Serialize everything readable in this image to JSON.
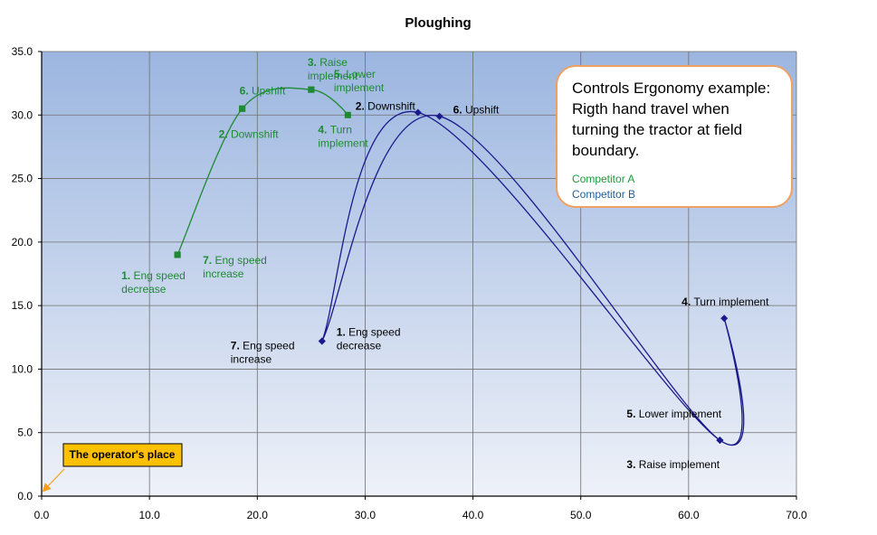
{
  "chart_data": {
    "type": "line",
    "title": "Ploughing",
    "xlabel": "",
    "ylabel": "",
    "xlim": [
      0,
      70
    ],
    "ylim": [
      0,
      35
    ],
    "x_ticks": [
      "0.0",
      "10.0",
      "20.0",
      "30.0",
      "40.0",
      "50.0",
      "60.0",
      "70.0"
    ],
    "y_ticks": [
      "0.0",
      "5.0",
      "10.0",
      "15.0",
      "20.0",
      "25.0",
      "30.0",
      "35.0"
    ],
    "grid": true,
    "series": [
      {
        "name": "Competitor A",
        "color": "#1e8a32",
        "smooth": true,
        "points": [
          {
            "step": "1.",
            "label": "Eng speed decrease",
            "x": 12.6,
            "y": 19.0
          },
          {
            "step": "2.",
            "label": "Downshift",
            "x": 18.6,
            "y": 30.5
          },
          {
            "step": "3.",
            "label": "Raise implement",
            "x": 25.0,
            "y": 32.0
          },
          {
            "step": "4.",
            "label": "Turn implement",
            "x": 28.4,
            "y": 30.0
          },
          {
            "step": "5.",
            "label": "Lower implement",
            "x": 25.0,
            "y": 32.0
          },
          {
            "step": "6.",
            "label": "Upshift",
            "x": 18.6,
            "y": 30.5
          },
          {
            "step": "7.",
            "label": "Eng speed increase",
            "x": 12.6,
            "y": 19.0
          }
        ]
      },
      {
        "name": "Competitor B",
        "color": "#1a1a8c",
        "smooth": true,
        "points": [
          {
            "step": "1.",
            "label": "Eng speed decrease",
            "x": 26.0,
            "y": 12.2
          },
          {
            "step": "2.",
            "label": "Downshift",
            "x": 34.9,
            "y": 30.2
          },
          {
            "step": "3.",
            "label": "Raise implement",
            "x": 62.9,
            "y": 4.4
          },
          {
            "step": "4.",
            "label": "Turn implement",
            "x": 63.3,
            "y": 14.0
          },
          {
            "step": "5.",
            "label": "Lower implement",
            "x": 62.9,
            "y": 4.4
          },
          {
            "step": "6.",
            "label": "Upshift",
            "x": 36.9,
            "y": 29.9
          },
          {
            "step": "7.",
            "label": "Eng speed increase",
            "x": 26.0,
            "y": 12.2
          }
        ]
      }
    ],
    "annotations": [
      {
        "series": 0,
        "step": "1.",
        "lines": [
          "Eng speed",
          "decrease"
        ]
      },
      {
        "series": 0,
        "step": "2.",
        "lines": [
          "Downshift"
        ]
      },
      {
        "series": 0,
        "step": "3.",
        "lines": [
          "Raise",
          "implement"
        ]
      },
      {
        "series": 0,
        "step": "4.",
        "lines": [
          "Turn",
          "implement"
        ]
      },
      {
        "series": 0,
        "step": "5.",
        "lines": [
          "Lower",
          "implement"
        ]
      },
      {
        "series": 0,
        "step": "6.",
        "lines": [
          "Upshift"
        ]
      },
      {
        "series": 0,
        "step": "7.",
        "lines": [
          "Eng speed",
          "increase"
        ]
      },
      {
        "series": 1,
        "step": "1.",
        "lines": [
          "Eng speed",
          "decrease"
        ]
      },
      {
        "series": 1,
        "step": "2.",
        "lines": [
          "Downshift"
        ]
      },
      {
        "series": 1,
        "step": "3.",
        "lines": [
          "Raise  implement"
        ]
      },
      {
        "series": 1,
        "step": "4.",
        "lines": [
          "Turn  implement"
        ]
      },
      {
        "series": 1,
        "step": "5.",
        "lines": [
          "Lower implement"
        ]
      },
      {
        "series": 1,
        "step": "6.",
        "lines": [
          "Upshift"
        ]
      },
      {
        "series": 1,
        "step": "7.",
        "lines": [
          "Eng speed",
          "increase"
        ]
      }
    ],
    "operator_note": {
      "text": "The operator's  place",
      "x": 0,
      "y": 0
    }
  },
  "callout": {
    "title": "Controls Ergonomy example: Rigth hand travel when turning the tractor at field boundary.",
    "legend_a": "Competitor A",
    "legend_b": "Competitor B"
  },
  "colors": {
    "plot_top": "#9cb6e0",
    "plot_bottom": "#eef1f8",
    "grid": "#6f6f6f",
    "callout_border": "#f0a060",
    "operator_box": "#ffc000"
  }
}
